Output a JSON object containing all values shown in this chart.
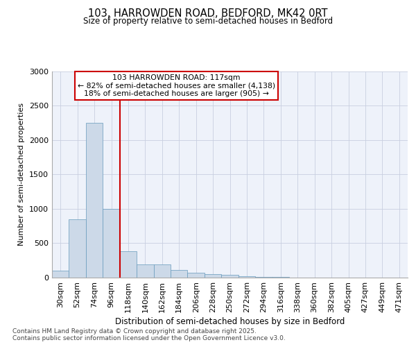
{
  "title_line1": "103, HARROWDEN ROAD, BEDFORD, MK42 0RT",
  "title_line2": "Size of property relative to semi-detached houses in Bedford",
  "xlabel": "Distribution of semi-detached houses by size in Bedford",
  "ylabel": "Number of semi-detached properties",
  "bar_color": "#ccd9e8",
  "bar_edge_color": "#6699bb",
  "background_color": "#eef2fa",
  "grid_color": "#c8cfe0",
  "property_label": "103 HARROWDEN ROAD: 117sqm",
  "annotation_smaller": "← 82% of semi-detached houses are smaller (4,138)",
  "annotation_larger": "18% of semi-detached houses are larger (905) →",
  "annotation_box_color": "#ffffff",
  "annotation_box_edge": "#cc0000",
  "red_line_color": "#cc0000",
  "categories": [
    "30sqm",
    "52sqm",
    "74sqm",
    "96sqm",
    "118sqm",
    "140sqm",
    "162sqm",
    "184sqm",
    "206sqm",
    "228sqm",
    "250sqm",
    "272sqm",
    "294sqm",
    "316sqm",
    "338sqm",
    "360sqm",
    "382sqm",
    "405sqm",
    "427sqm",
    "449sqm",
    "471sqm"
  ],
  "values": [
    100,
    850,
    2250,
    1000,
    380,
    190,
    190,
    110,
    75,
    55,
    40,
    20,
    10,
    8,
    5,
    4,
    3,
    2,
    2,
    1,
    1
  ],
  "ylim": [
    0,
    3000
  ],
  "yticks": [
    0,
    500,
    1000,
    1500,
    2000,
    2500,
    3000
  ],
  "red_line_bin_index": 4,
  "footnote1": "Contains HM Land Registry data © Crown copyright and database right 2025.",
  "footnote2": "Contains public sector information licensed under the Open Government Licence v3.0."
}
